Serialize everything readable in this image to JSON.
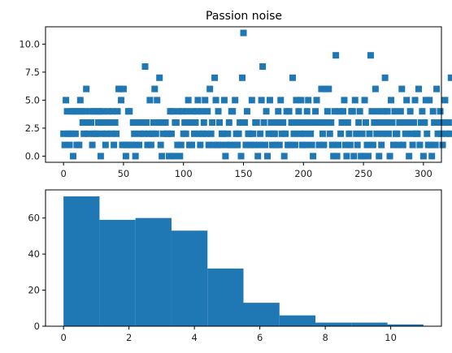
{
  "chart_data": [
    {
      "type": "scatter",
      "title": "Passion noise",
      "xlabel": "",
      "ylabel": "",
      "xlim": [
        -15,
        315
      ],
      "ylim": [
        -0.55,
        11.55
      ],
      "xticks": [
        0,
        50,
        100,
        150,
        200,
        250,
        300
      ],
      "xtick_labels": [
        "0",
        "50",
        "100",
        "150",
        "200",
        "250",
        "300"
      ],
      "yticks": [
        0.0,
        2.5,
        5.0,
        7.5,
        10.0
      ],
      "ytick_labels": [
        "0.0",
        "2.5",
        "5.0",
        "7.5",
        "10.0"
      ],
      "marker": "square",
      "color": "#1f77b4",
      "y": [
        2,
        1,
        5,
        4,
        2,
        1,
        2,
        4,
        0,
        4,
        2,
        1,
        4,
        1,
        5,
        4,
        3,
        2,
        4,
        6,
        3,
        2,
        4,
        3,
        1,
        4,
        2,
        2,
        4,
        3,
        4,
        0,
        2,
        4,
        3,
        1,
        2,
        4,
        3,
        3,
        2,
        4,
        1,
        3,
        2,
        4,
        6,
        6,
        5,
        1,
        6,
        1,
        0,
        1,
        4,
        4,
        1,
        1,
        3,
        2,
        0,
        1,
        3,
        1,
        2,
        3,
        3,
        2,
        8,
        3,
        1,
        2,
        5,
        1,
        2,
        3,
        6,
        2,
        5,
        3,
        7,
        1,
        0,
        2,
        3,
        3,
        2,
        2,
        0,
        4,
        2,
        4,
        0,
        3,
        3,
        1,
        4,
        0,
        1,
        4,
        2,
        3,
        2,
        4,
        5,
        1,
        3,
        1,
        4,
        2,
        3,
        4,
        5,
        2,
        1,
        4,
        2,
        3,
        5,
        2,
        4,
        1,
        6,
        2,
        3,
        1,
        7,
        5,
        1,
        4,
        3,
        1,
        2,
        2,
        5,
        0,
        1,
        2,
        3,
        1,
        4,
        4,
        1,
        5,
        2,
        1,
        2,
        3,
        0,
        7,
        11,
        3,
        1,
        4,
        2,
        2,
        1,
        5,
        2,
        1,
        3,
        3,
        0,
        1,
        2,
        5,
        8,
        3,
        1,
        4,
        0,
        2,
        5,
        3,
        1,
        2,
        2,
        1,
        3,
        4,
        1,
        5,
        2,
        3,
        0,
        2,
        4,
        1,
        4,
        1,
        3,
        7,
        2,
        1,
        5,
        3,
        4,
        2,
        5,
        1,
        3,
        2,
        1,
        4,
        5,
        3,
        2,
        1,
        0,
        3,
        4,
        5,
        3,
        1,
        3,
        6,
        2,
        1,
        6,
        3,
        4,
        6,
        2,
        3,
        1,
        0,
        4,
        9,
        0,
        1,
        4,
        2,
        3,
        4,
        5,
        1,
        0,
        3,
        2,
        1,
        4,
        4,
        0,
        5,
        2,
        1,
        3,
        4,
        0,
        2,
        0,
        5,
        3,
        1,
        0,
        2,
        9,
        4,
        1,
        3,
        6,
        2,
        4,
        0,
        3,
        1,
        2,
        4,
        7,
        3,
        4,
        2,
        0,
        5,
        3,
        1,
        4,
        2,
        2,
        1,
        3,
        4,
        6,
        1,
        3,
        2,
        5,
        3,
        0,
        4,
        2,
        1,
        3,
        5,
        2,
        2,
        6,
        1,
        3,
        4,
        0,
        3,
        5,
        2,
        1,
        5,
        1,
        0,
        4,
        3,
        1,
        6,
        2,
        3,
        4,
        2,
        1,
        3,
        5,
        2,
        3,
        3,
        2,
        7
      ]
    },
    {
      "type": "histogram",
      "title": "",
      "xlabel": "",
      "ylabel": "",
      "xlim": [
        -0.55,
        11.55
      ],
      "ylim": [
        0,
        75.6
      ],
      "xticks": [
        0,
        2,
        4,
        6,
        8,
        10
      ],
      "xtick_labels": [
        "0",
        "2",
        "4",
        "6",
        "8",
        "10"
      ],
      "yticks": [
        0,
        20,
        40,
        60
      ],
      "ytick_labels": [
        "0",
        "20",
        "40",
        "60"
      ],
      "color": "#1f77b4",
      "bin_edges": [
        0,
        1.1,
        2.2,
        3.3,
        4.4,
        5.5,
        6.6,
        7.7,
        8.8,
        9.9,
        11.0
      ],
      "counts": [
        72,
        59,
        60,
        53,
        32,
        13,
        6,
        2,
        2,
        1
      ]
    }
  ]
}
